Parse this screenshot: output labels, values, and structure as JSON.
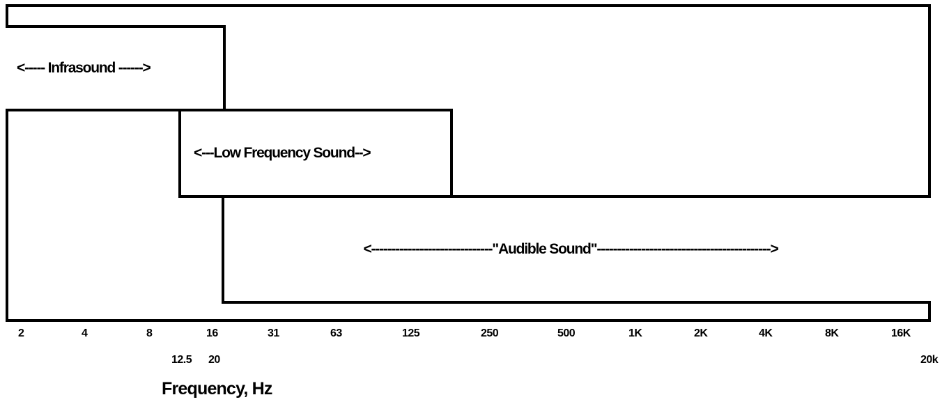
{
  "bands": {
    "infrasound": "<----- Infrasound ------>",
    "low_frequency": "<---Low Frequency Sound-->",
    "audible": "<------------------------------\"Audible Sound\"------------------------------------------->"
  },
  "axis": {
    "ticks": [
      "2",
      "4",
      "8",
      "16",
      "31",
      "63",
      "125",
      "250",
      "500",
      "1K",
      "2K",
      "4K",
      "8K",
      "16K"
    ],
    "secondary_ticks": [
      "12.5",
      "20",
      "20k"
    ],
    "title": "Frequency, Hz"
  }
}
